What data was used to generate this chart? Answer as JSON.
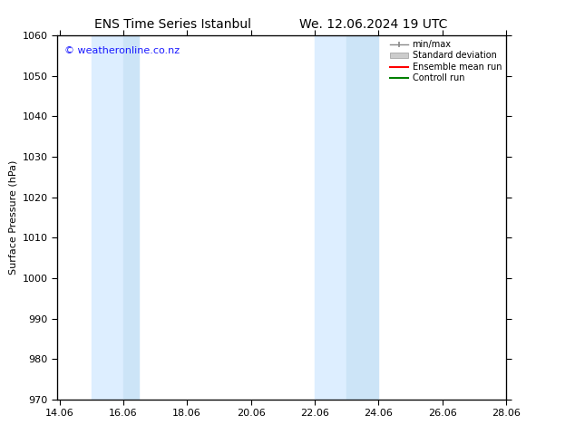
{
  "title_left": "ENS Time Series Istanbul",
  "title_right": "We. 12.06.2024 19 UTC",
  "ylabel": "Surface Pressure (hPa)",
  "ylim": [
    970,
    1060
  ],
  "yticks": [
    970,
    980,
    990,
    1000,
    1010,
    1020,
    1030,
    1040,
    1050,
    1060
  ],
  "xlim_start": 14.0,
  "xlim_end": 28.06,
  "xtick_labels": [
    "14.06",
    "16.06",
    "18.06",
    "20.06",
    "22.06",
    "24.06",
    "26.06",
    "28.06"
  ],
  "xtick_positions": [
    14.06,
    16.06,
    18.06,
    20.06,
    22.06,
    24.06,
    26.06,
    28.06
  ],
  "shaded_bands": [
    {
      "x_start": 15.06,
      "x_end": 16.06,
      "color": "#ddeeff"
    },
    {
      "x_start": 16.06,
      "x_end": 16.56,
      "color": "#cce4f7"
    },
    {
      "x_start": 22.06,
      "x_end": 23.06,
      "color": "#ddeeff"
    },
    {
      "x_start": 23.06,
      "x_end": 24.06,
      "color": "#cce4f7"
    }
  ],
  "watermark_text": "© weatheronline.co.nz",
  "watermark_color": "#1a1aff",
  "watermark_fontsize": 8,
  "bg_color": "#ffffff",
  "title_fontsize": 10,
  "axis_label_fontsize": 8,
  "tick_fontsize": 8
}
